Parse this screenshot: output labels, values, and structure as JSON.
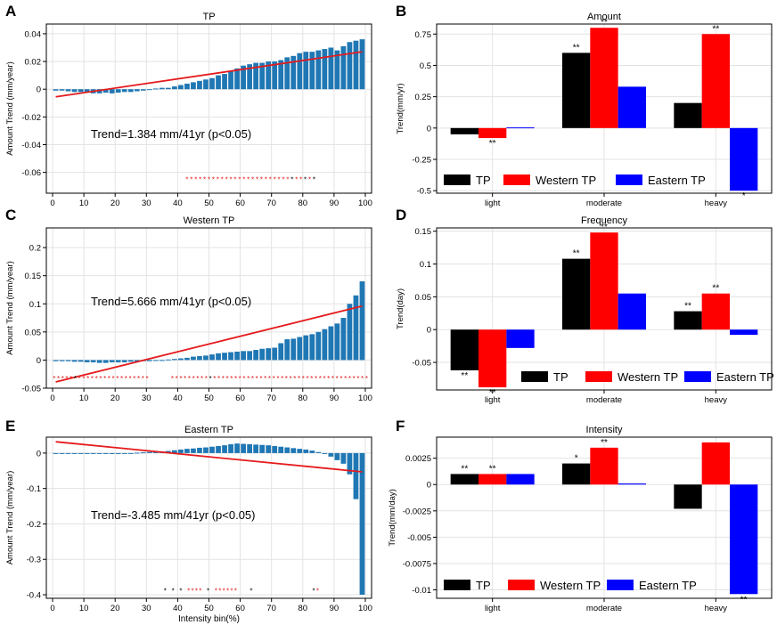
{
  "panel_letters": [
    "A",
    "B",
    "C",
    "D",
    "E",
    "F"
  ],
  "colors": {
    "bin_bar": "#1f77b4",
    "trend_line": "#e41a1c",
    "sig_red": "#e41a1c",
    "sig_black": "#000000",
    "tp": "#000000",
    "western": "#ff0000",
    "eastern": "#0000ff"
  },
  "chart_data": [
    {
      "id": "A",
      "type": "bar",
      "title": "TP",
      "xlabel": "",
      "ylabel": "Amount Trend (mm/year)",
      "xlim": [
        -2,
        102
      ],
      "ylim": [
        -0.075,
        0.047
      ],
      "xticks": [
        0,
        10,
        20,
        30,
        40,
        50,
        60,
        70,
        80,
        90,
        100
      ],
      "xtick_labels": [
        "0",
        "10",
        "20",
        "30",
        "40",
        "50",
        "60",
        "70",
        "80",
        "90",
        "100"
      ],
      "yticks": [
        -0.06,
        -0.04,
        -0.02,
        0,
        0.02,
        0.04
      ],
      "ytick_labels": [
        "-0.06",
        "-0.04",
        "-0.02",
        "0",
        "0.02",
        "0.04"
      ],
      "x": [
        1,
        3,
        5,
        7,
        9,
        11,
        13,
        15,
        17,
        19,
        21,
        23,
        25,
        27,
        29,
        31,
        33,
        35,
        37,
        39,
        41,
        43,
        45,
        47,
        49,
        51,
        53,
        55,
        57,
        59,
        61,
        63,
        65,
        67,
        69,
        71,
        73,
        75,
        77,
        79,
        81,
        83,
        85,
        87,
        89,
        91,
        93,
        95,
        97,
        99
      ],
      "values": [
        -0.001,
        -0.001,
        -0.0015,
        -0.002,
        -0.002,
        -0.0025,
        -0.003,
        -0.003,
        -0.0025,
        -0.003,
        -0.0025,
        -0.002,
        -0.002,
        -0.0015,
        -0.001,
        0,
        0.0005,
        0.001,
        0.001,
        0.002,
        0.003,
        0.004,
        0.005,
        0.006,
        0.007,
        0.008,
        0.01,
        0.011,
        0.013,
        0.015,
        0.017,
        0.018,
        0.019,
        0.019,
        0.02,
        0.02,
        0.021,
        0.023,
        0.024,
        0.026,
        0.027,
        0.027,
        0.028,
        0.029,
        0.03,
        0.028,
        0.031,
        0.034,
        0.035,
        0.036
      ],
      "trend_line": {
        "x": [
          1,
          99
        ],
        "y": [
          -0.0055,
          0.027
        ]
      },
      "annotation": "Trend=1.384 mm/41yr (p<0.05)",
      "sig_stars": {
        "y": -0.0645,
        "x_start": 43,
        "step": 1.4,
        "text": "******************************",
        "colors": "rrrrrrrrrrrrrrrrrrrrrrrrbrrbrb"
      }
    },
    {
      "id": "C",
      "type": "bar",
      "title": "Western TP",
      "xlabel": "",
      "ylabel": "Amount Trend (mm/year)",
      "xlim": [
        -2,
        102
      ],
      "ylim": [
        -0.05,
        0.235
      ],
      "xticks": [
        0,
        10,
        20,
        30,
        40,
        50,
        60,
        70,
        80,
        90,
        100
      ],
      "xtick_labels": [
        "0",
        "10",
        "20",
        "30",
        "40",
        "50",
        "60",
        "70",
        "80",
        "90",
        "100"
      ],
      "yticks": [
        -0.05,
        0,
        0.05,
        0.1,
        0.15,
        0.2
      ],
      "ytick_labels": [
        "-0.05",
        "0",
        "0.05",
        "0.1",
        "0.15",
        "0.2"
      ],
      "x": [
        1,
        3,
        5,
        7,
        9,
        11,
        13,
        15,
        17,
        19,
        21,
        23,
        25,
        27,
        29,
        31,
        33,
        35,
        37,
        39,
        41,
        43,
        45,
        47,
        49,
        51,
        53,
        55,
        57,
        59,
        61,
        63,
        65,
        67,
        69,
        71,
        73,
        75,
        77,
        79,
        81,
        83,
        85,
        87,
        89,
        91,
        93,
        95,
        97,
        99
      ],
      "values": [
        -0.002,
        -0.002,
        -0.002,
        -0.003,
        -0.003,
        -0.004,
        -0.004,
        -0.005,
        -0.005,
        -0.004,
        -0.004,
        -0.004,
        -0.003,
        -0.003,
        -0.002,
        -0.002,
        -0.001,
        0,
        0.001,
        0.002,
        0.003,
        0.004,
        0.006,
        0.007,
        0.008,
        0.01,
        0.012,
        0.013,
        0.014,
        0.015,
        0.016,
        0.016,
        0.018,
        0.02,
        0.021,
        0.022,
        0.03,
        0.037,
        0.038,
        0.041,
        0.044,
        0.046,
        0.05,
        0.055,
        0.06,
        0.065,
        0.075,
        0.1,
        0.115,
        0.14
      ],
      "trend_line": {
        "x": [
          1,
          99
        ],
        "y": [
          -0.039,
          0.096
        ]
      },
      "annotation": "Trend=5.666 mm/41yr (p<0.05)",
      "sig_stars": {
        "y": -0.031,
        "x_start": 0.5,
        "step": 1.35,
        "text": "**************************************************************************",
        "colors": "rrrrrbrrrrrrrrrrrrrrrrr     rrrrrrrrrbrrrrrrrrrrrrrrrrrrrrrrrrrrrrrrrrrrrrr"
      }
    },
    {
      "id": "E",
      "type": "bar",
      "title": "Eastern TP",
      "xlabel": "Intensity bin(%)",
      "ylabel": "Amount Trend (mm/year)",
      "xlim": [
        -2,
        102
      ],
      "ylim": [
        -0.41,
        0.045
      ],
      "xticks": [
        0,
        10,
        20,
        30,
        40,
        50,
        60,
        70,
        80,
        90,
        100
      ],
      "xtick_labels": [
        "0",
        "10",
        "20",
        "30",
        "40",
        "50",
        "60",
        "70",
        "80",
        "90",
        "100"
      ],
      "yticks": [
        -0.4,
        -0.3,
        -0.2,
        -0.1,
        0
      ],
      "ytick_labels": [
        "-0.4",
        "-0.3",
        "-0.2",
        "-0.1",
        "0"
      ],
      "x": [
        1,
        3,
        5,
        7,
        9,
        11,
        13,
        15,
        17,
        19,
        21,
        23,
        25,
        27,
        29,
        31,
        33,
        35,
        37,
        39,
        41,
        43,
        45,
        47,
        49,
        51,
        53,
        55,
        57,
        59,
        61,
        63,
        65,
        67,
        69,
        71,
        73,
        75,
        77,
        79,
        81,
        83,
        85,
        87,
        89,
        91,
        93,
        95,
        97,
        99
      ],
      "values": [
        -0.001,
        -0.001,
        -0.001,
        -0.001,
        -0.001,
        -0.001,
        -0.001,
        -0.001,
        -0.001,
        -0.001,
        -0.001,
        0,
        0,
        0.001,
        0.002,
        0.003,
        0.004,
        0.005,
        0.006,
        0.008,
        0.01,
        0.012,
        0.013,
        0.015,
        0.016,
        0.018,
        0.02,
        0.022,
        0.025,
        0.027,
        0.026,
        0.025,
        0.024,
        0.023,
        0.022,
        0.02,
        0.018,
        0.016,
        0.014,
        0.012,
        0.01,
        0.007,
        0.003,
        -0.002,
        -0.01,
        -0.02,
        -0.03,
        -0.06,
        -0.13,
        -0.4
      ],
      "trend_line": {
        "x": [
          1,
          99
        ],
        "y": [
          0.032,
          -0.053
        ]
      },
      "annotation": "Trend=-3.485 mm/41yr (p<0.05)",
      "sig_stars": {
        "y": -0.386,
        "x_start": 36,
        "step": 1.25,
        "text": "******************",
        "colors": "b b b rrrr b rrrrrr   b               br"
      }
    },
    {
      "id": "B",
      "type": "bar",
      "title": "Amount",
      "xlabel": "",
      "ylabel": "Trend(mm/yr)",
      "categories": [
        "light",
        "moderate",
        "heavy"
      ],
      "ylim": [
        -0.52,
        0.83
      ],
      "yticks": [
        -0.5,
        -0.25,
        0,
        0.25,
        0.5,
        0.75
      ],
      "ytick_labels": [
        "-0.5",
        "-0.25",
        "0",
        "0.25",
        "0.5",
        "0.75"
      ],
      "series": [
        {
          "name": "TP",
          "values": [
            -0.05,
            0.6,
            0.2
          ],
          "stars": [
            "",
            "**",
            ""
          ]
        },
        {
          "name": "Western TP",
          "values": [
            -0.08,
            0.8,
            0.75
          ],
          "stars": [
            "**",
            "**",
            "**"
          ]
        },
        {
          "name": "Eastern TP",
          "values": [
            0.005,
            0.33,
            -0.5
          ],
          "stars": [
            "",
            "",
            "*"
          ]
        }
      ],
      "legend": "bottom-left"
    },
    {
      "id": "D",
      "type": "bar",
      "title": "Frequency",
      "xlabel": "",
      "ylabel": "Trend(day)",
      "categories": [
        "light",
        "moderate",
        "heavy"
      ],
      "ylim": [
        -0.092,
        0.155
      ],
      "yticks": [
        -0.05,
        0,
        0.05,
        0.1,
        0.15
      ],
      "ytick_labels": [
        "-0.05",
        "0",
        "0.05",
        "0.1",
        "0.15"
      ],
      "series": [
        {
          "name": "TP",
          "values": [
            -0.062,
            0.108,
            0.028
          ],
          "stars": [
            "**",
            "**",
            "**"
          ]
        },
        {
          "name": "Western TP",
          "values": [
            -0.088,
            0.148,
            0.055
          ],
          "stars": [
            "**",
            "**",
            "**"
          ]
        },
        {
          "name": "Eastern TP",
          "values": [
            -0.028,
            0.055,
            -0.008
          ],
          "stars": [
            "",
            "",
            ""
          ]
        }
      ],
      "legend": "bottom-right"
    },
    {
      "id": "F",
      "type": "bar",
      "title": "Intensity",
      "xlabel": "",
      "ylabel": "Trend(mm/day)",
      "categories": [
        "light",
        "moderate",
        "heavy"
      ],
      "ylim": [
        -0.0108,
        0.0045
      ],
      "yticks": [
        -0.01,
        -0.0075,
        -0.005,
        -0.0025,
        0,
        0.0025
      ],
      "ytick_labels": [
        "-0.01",
        "-0.0075",
        "-0.005",
        "-0.0025",
        "0",
        "0.0025"
      ],
      "series": [
        {
          "name": "TP",
          "values": [
            0.001,
            0.002,
            -0.0023
          ],
          "stars": [
            "**",
            "*",
            ""
          ]
        },
        {
          "name": "Western TP",
          "values": [
            0.001,
            0.0035,
            0.004
          ],
          "stars": [
            "**",
            "**",
            ""
          ]
        },
        {
          "name": "Eastern TP",
          "values": [
            0.001,
            0.0001,
            -0.0104
          ],
          "stars": [
            "",
            "",
            "**"
          ]
        }
      ],
      "legend": "bottom-left"
    }
  ]
}
